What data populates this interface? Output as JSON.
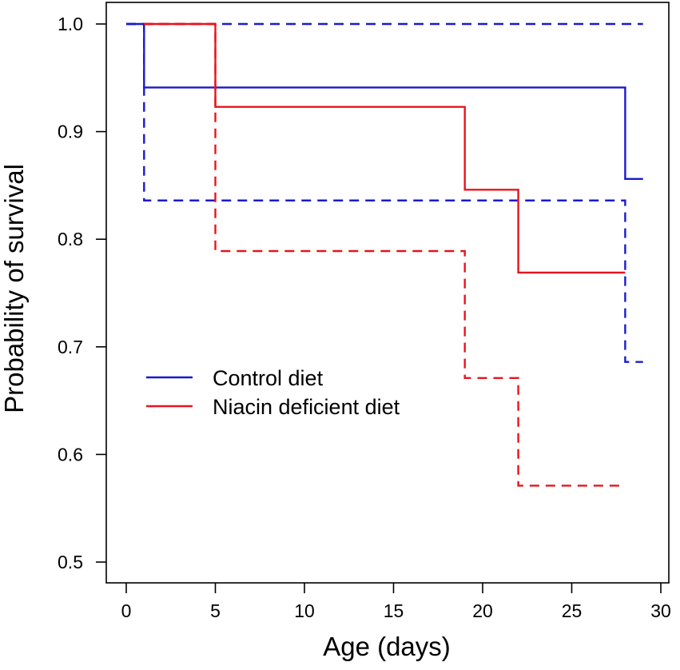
{
  "chart_data": {
    "type": "line",
    "subtype": "kaplan-meier step survival curves with confidence bands",
    "title": "",
    "xlabel": "Age (days)",
    "ylabel": "Probability of survival",
    "xlim": [
      0,
      30
    ],
    "ylim": [
      0.5,
      1.0
    ],
    "xticks": [
      0,
      5,
      10,
      15,
      20,
      25,
      30
    ],
    "yticks": [
      0.5,
      0.6,
      0.7,
      0.8,
      0.9,
      1.0
    ],
    "xtick_labels": [
      "0",
      "5",
      "10",
      "15",
      "20",
      "25",
      "30"
    ],
    "ytick_labels": [
      "0.5",
      "0.6",
      "0.7",
      "0.8",
      "0.9",
      "1.0"
    ],
    "legend_position": "center-left",
    "series": [
      {
        "name": "Control diet",
        "color": "#1a1acc",
        "style": "solid",
        "legend": true,
        "steps": [
          [
            0,
            1.0
          ],
          [
            1,
            0.941
          ],
          [
            28,
            0.856
          ],
          [
            29,
            0.856
          ]
        ]
      },
      {
        "name": "Control diet upper CI",
        "color": "#1a1acc",
        "style": "dashed",
        "legend": false,
        "steps": [
          [
            0,
            1.0
          ],
          [
            29,
            1.0
          ]
        ]
      },
      {
        "name": "Control diet lower CI",
        "color": "#1a1acc",
        "style": "dashed",
        "legend": false,
        "steps": [
          [
            0,
            1.0
          ],
          [
            1,
            0.836
          ],
          [
            28,
            0.686
          ],
          [
            29,
            0.686
          ]
        ]
      },
      {
        "name": "Niacin deficient diet",
        "color": "#e8141c",
        "style": "solid",
        "legend": true,
        "steps": [
          [
            1,
            1.0
          ],
          [
            5,
            0.923
          ],
          [
            19,
            0.846
          ],
          [
            22,
            0.769
          ],
          [
            28,
            0.769
          ]
        ]
      },
      {
        "name": "Niacin deficient diet upper CI",
        "color": "#e8141c",
        "style": "dashed",
        "legend": false,
        "steps": [
          [
            1,
            1.0
          ],
          [
            5,
            1.0
          ]
        ]
      },
      {
        "name": "Niacin deficient diet lower CI",
        "color": "#e8141c",
        "style": "dashed",
        "legend": false,
        "steps": [
          [
            1,
            1.0
          ],
          [
            5,
            0.789
          ],
          [
            19,
            0.671
          ],
          [
            22,
            0.571
          ],
          [
            28,
            0.571
          ]
        ]
      }
    ]
  }
}
